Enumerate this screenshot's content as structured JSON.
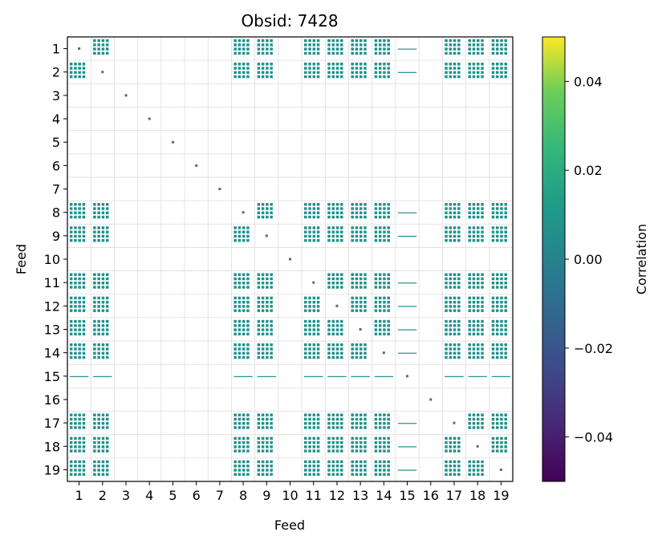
{
  "chart_data": {
    "type": "heatmap",
    "title": "Obsid: 7428",
    "xlabel": "Feed",
    "ylabel": "Feed",
    "x_ticks": [
      "1",
      "2",
      "3",
      "4",
      "5",
      "6",
      "7",
      "8",
      "9",
      "10",
      "11",
      "12",
      "13",
      "14",
      "15",
      "16",
      "17",
      "18",
      "19"
    ],
    "y_ticks": [
      "1",
      "2",
      "3",
      "4",
      "5",
      "6",
      "7",
      "8",
      "9",
      "10",
      "11",
      "12",
      "13",
      "14",
      "15",
      "16",
      "17",
      "18",
      "19"
    ],
    "xlim": [
      0.5,
      19.5
    ],
    "ylim": [
      19.5,
      0.5
    ],
    "grid": true,
    "colorbar": {
      "label": "Correlation",
      "range": [
        -0.05,
        0.05
      ],
      "ticks": [
        "0.04",
        "0.02",
        "0.00",
        "−0.02",
        "−0.04"
      ],
      "tick_values": [
        0.04,
        0.02,
        0.0,
        -0.02,
        -0.04
      ],
      "colormap": "viridis"
    },
    "active_feeds": [
      1,
      2,
      8,
      9,
      11,
      12,
      13,
      14,
      17,
      18,
      19
    ],
    "partial_feeds": [
      15
    ],
    "inactive_feeds": [
      3,
      4,
      5,
      6,
      7,
      10,
      16
    ],
    "cell_value": 0.0,
    "cell_color": "#21918c",
    "diagonal_color": "#666666"
  }
}
